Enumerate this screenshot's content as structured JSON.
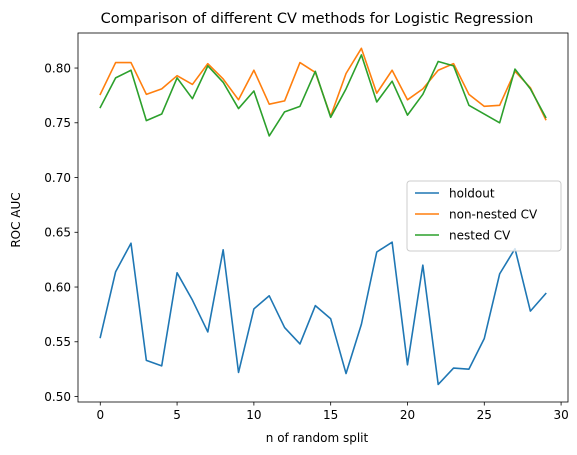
{
  "chart_data": {
    "type": "line",
    "title": "Comparison of different CV methods for Logistic Regression",
    "xlabel": "n of random split",
    "ylabel": "ROC AUC",
    "xlim": [
      -1.45,
      30.45
    ],
    "ylim": [
      0.495,
      0.832
    ],
    "xticks": [
      0,
      5,
      10,
      15,
      20,
      25,
      30
    ],
    "yticks": [
      0.5,
      0.55,
      0.6,
      0.65,
      0.7,
      0.75,
      0.8
    ],
    "xtick_labels": [
      "0",
      "5",
      "10",
      "15",
      "20",
      "25",
      "30"
    ],
    "ytick_labels": [
      "0.50",
      "0.55",
      "0.60",
      "0.65",
      "0.70",
      "0.75",
      "0.80"
    ],
    "grid": false,
    "legend_position": "center-right",
    "x": [
      0,
      1,
      2,
      3,
      4,
      5,
      6,
      7,
      8,
      9,
      10,
      11,
      12,
      13,
      14,
      15,
      16,
      17,
      18,
      19,
      20,
      21,
      22,
      23,
      24,
      25,
      26,
      27,
      28,
      29
    ],
    "series": [
      {
        "name": "holdout",
        "color": "#1f77b4",
        "values": [
          0.554,
          0.614,
          0.64,
          0.533,
          0.528,
          0.613,
          0.588,
          0.559,
          0.634,
          0.522,
          0.58,
          0.592,
          0.563,
          0.548,
          0.583,
          0.571,
          0.521,
          0.566,
          0.632,
          0.641,
          0.529,
          0.62,
          0.511,
          0.526,
          0.525,
          0.553,
          0.612,
          0.635,
          0.578,
          0.594
        ]
      },
      {
        "name": "non-nested CV",
        "color": "#ff7f0e",
        "values": [
          0.776,
          0.805,
          0.805,
          0.776,
          0.781,
          0.793,
          0.785,
          0.804,
          0.79,
          0.771,
          0.798,
          0.767,
          0.77,
          0.805,
          0.796,
          0.756,
          0.795,
          0.818,
          0.777,
          0.798,
          0.771,
          0.781,
          0.798,
          0.804,
          0.776,
          0.765,
          0.766,
          0.797,
          0.782,
          0.753
        ]
      },
      {
        "name": "nested CV",
        "color": "#2ca02c",
        "values": [
          0.764,
          0.791,
          0.798,
          0.752,
          0.758,
          0.791,
          0.772,
          0.802,
          0.787,
          0.763,
          0.779,
          0.738,
          0.76,
          0.765,
          0.797,
          0.755,
          0.781,
          0.812,
          0.769,
          0.788,
          0.757,
          0.776,
          0.806,
          0.802,
          0.766,
          0.758,
          0.75,
          0.799,
          0.781,
          0.755
        ]
      }
    ]
  }
}
